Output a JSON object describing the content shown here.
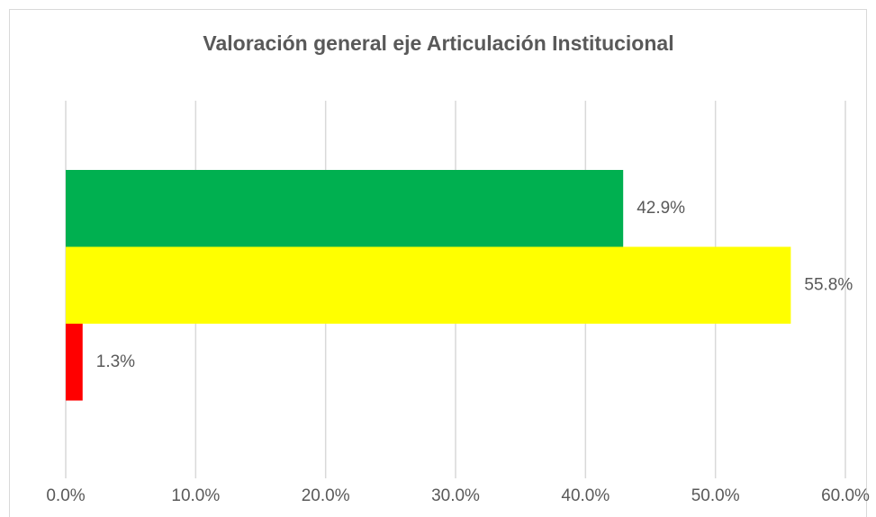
{
  "chart_data": {
    "type": "barh",
    "title": "Valoración general eje Articulación Institucional",
    "values": [
      42.9,
      55.8,
      1.3
    ],
    "value_labels": [
      "42.9%",
      "55.8%",
      "1.3%"
    ],
    "colors": [
      "#00b050",
      "#ffff00",
      "#ff0000"
    ],
    "xlim": [
      0,
      60
    ],
    "xticks": [
      {
        "value": 0,
        "label": "0.0%"
      },
      {
        "value": 10,
        "label": "10.0%"
      },
      {
        "value": 20,
        "label": "20.0%"
      },
      {
        "value": 30,
        "label": "30.0%"
      },
      {
        "value": 40,
        "label": "40.0%"
      },
      {
        "value": 50,
        "label": "50.0%"
      },
      {
        "value": 60,
        "label": "60.0%"
      }
    ],
    "grid": true
  }
}
